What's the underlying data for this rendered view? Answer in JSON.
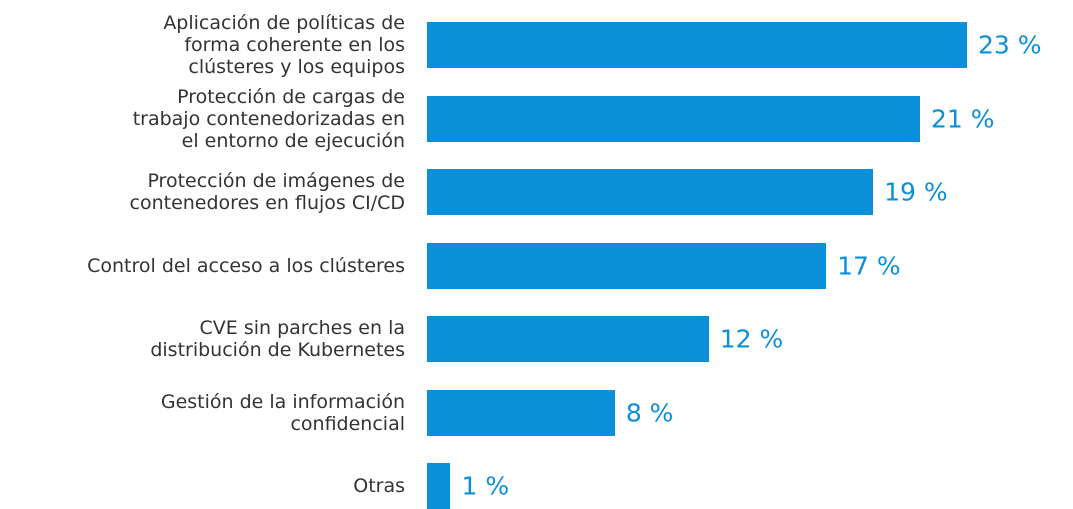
{
  "chart_data": {
    "type": "bar",
    "orientation": "horizontal",
    "color": "#0a8fd9",
    "categories": [
      "Aplicación de políticas de\nforma coherente en los\nclústeres y los equipos",
      "Protección de cargas de\ntrabajo contenedorizadas en\nel entorno de ejecución",
      "Protección de imágenes de\ncontenedores en flujos CI/CD",
      "Control del acceso a los clústeres",
      "CVE sin parches en la\ndistribución de Kubernetes",
      "Gestión de la información\nconfidencial",
      "Otras"
    ],
    "values": [
      23,
      21,
      19,
      17,
      12,
      8,
      1
    ],
    "value_labels": [
      "23 %",
      "21 %",
      "19 %",
      "17 %",
      "12 %",
      "8 %",
      "1 %"
    ]
  }
}
